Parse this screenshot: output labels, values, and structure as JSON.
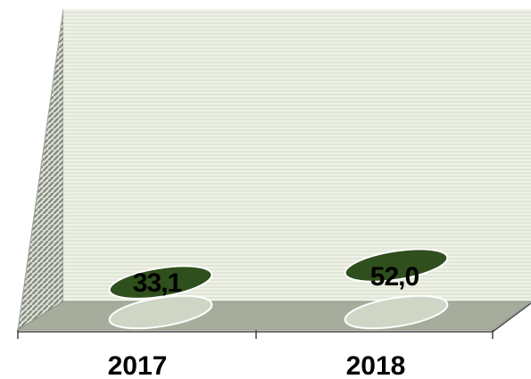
{
  "chart_data": {
    "type": "bar",
    "categories": [
      "2017",
      "2018"
    ],
    "values": [
      33.1,
      52.0
    ],
    "data_labels": [
      "33,1",
      "52,0"
    ],
    "title": "",
    "xlabel": "",
    "ylabel": "",
    "ylim": [
      0,
      10000
    ],
    "grid": true,
    "legend": "none",
    "colors": {
      "bar_top": "#2f4f1c",
      "bar_side": "#cfd6c6",
      "floor": "#a6ad9c",
      "back_wall": "#eef2e6",
      "side_wall": "#cfd3c8"
    }
  }
}
